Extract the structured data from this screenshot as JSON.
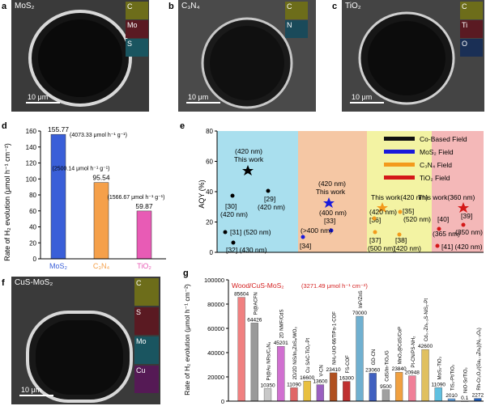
{
  "panels": {
    "a": {
      "letter": "a",
      "label": "MoS₂",
      "scale": "10 μm",
      "maps": [
        "C",
        "Mo",
        "S"
      ],
      "colors": [
        "#d8e03a",
        "#c0394a",
        "#3bb6c4"
      ]
    },
    "b": {
      "letter": "b",
      "label": "C₃N₄",
      "scale": "10 μm",
      "maps": [
        "C",
        "N"
      ],
      "colors": [
        "#d8e03a",
        "#3aa9c5"
      ]
    },
    "c": {
      "letter": "c",
      "label": "TiO₂",
      "scale": "10 μm",
      "maps": [
        "C",
        "Ti",
        "O"
      ],
      "colors": [
        "#d8e03a",
        "#c0394a",
        "#3e6fb0"
      ]
    },
    "f": {
      "letter": "f",
      "label": "CuS-MoS₂",
      "scale": "10 μm",
      "maps": [
        "C",
        "S",
        "Mo",
        "Cu"
      ],
      "colors": [
        "#d8e03a",
        "#c0394a",
        "#3bb6c4",
        "#b43bb6"
      ]
    }
  },
  "chart_d": {
    "letter": "d",
    "ylabel": "Rate of H₂ evolution (μmol h⁻¹ cm⁻²)",
    "ylim": [
      0,
      160
    ],
    "yticks": [
      0,
      20,
      40,
      60,
      80,
      100,
      120,
      140,
      160
    ],
    "bars": [
      {
        "name": "MoS₂",
        "value": 155.77,
        "value_label": "155.77",
        "note": "(4073.33 μmol h⁻¹ g⁻¹)",
        "color": "#3a5fd8"
      },
      {
        "name": "C₃N₄",
        "value": 95.54,
        "value_label": "95.54",
        "note": "(2500.14 μmol h⁻¹ g⁻¹)",
        "color": "#f5a04a"
      },
      {
        "name": "TiO₂",
        "value": 59.87,
        "value_label": "59.87",
        "note": "(1566.67 μmol h⁻¹ g⁻¹)",
        "color": "#e85bb5"
      }
    ]
  },
  "chart_e": {
    "letter": "e",
    "ylabel": "AQY (%)",
    "ylim": [
      0,
      80
    ],
    "yticks": [
      0,
      20,
      40,
      60,
      80
    ],
    "legend": [
      {
        "label": "Co-Based Field",
        "color": "#111111"
      },
      {
        "label": "MoS₂ Field",
        "color": "#1a1adb"
      },
      {
        "label": "C₃N₄ Field",
        "color": "#f39a1c"
      },
      {
        "label": "TiO₂ Field",
        "color": "#d41818"
      }
    ],
    "texts": [
      "(420 nm)",
      "This work",
      "[29]",
      "(420 nm)",
      "[30]",
      "(420 nm)",
      "[31] (520 nm)",
      "[32] (430 nm)",
      "(420 nm)",
      "This work",
      "(400 nm)",
      "[33]",
      "(>400 nm)",
      "[34]",
      "This work(420 nm)",
      "(420 nm)",
      "[36]",
      "[35]",
      "(520 nm)",
      "[37]",
      "(500 nm)",
      "[38]",
      "(420 nm)",
      "This work(360 nm)",
      "[40]",
      "[39]",
      "(365 nm)",
      "(350 nm)",
      "[41] (420 nm)"
    ]
  },
  "chart_g": {
    "letter": "g",
    "ylabel": "Rate of H₂ evolution (μmol h⁻¹ cm⁻²)",
    "ylim": [
      0,
      100000
    ],
    "yticks": [
      "0",
      "20000",
      "40000",
      "60000",
      "80000",
      "100000"
    ],
    "title": "Wood/CuS-MoS₂",
    "title_note": "(3271.49 μmol h⁻¹ cm⁻²)",
    "bars": [
      {
        "name": "",
        "value": 85604,
        "label": "85604",
        "color": "#f08080"
      },
      {
        "name": "Pt@ACFN",
        "value": 64426,
        "label": "64426",
        "color": "#9a9a9a"
      },
      {
        "name": "Pt@Au NRs/C₃N₄",
        "value": 10350,
        "label": "10350",
        "color": "#c8c8c8"
      },
      {
        "name": "2D NMF/CdS",
        "value": 45201,
        "label": "45201",
        "color": "#d070d0"
      },
      {
        "name": "2D/2D NiS/In₂ZnS₄/WO₃",
        "value": 11090,
        "label": "11090",
        "color": "#e06666"
      },
      {
        "name": "Cu SAC-TiO₂-Pt",
        "value": 16600,
        "label": "16600",
        "color": "#e8c040"
      },
      {
        "name": "V-CN",
        "value": 13600,
        "label": "13600",
        "color": "#9a5fc0"
      },
      {
        "name": "NH₂-UiO-66/TiPa-1-COF",
        "value": 23410,
        "label": "23410",
        "color": "#b05020"
      },
      {
        "name": "FS-COF",
        "value": 16300,
        "label": "16300",
        "color": "#c03030"
      },
      {
        "name": "InP/ZnS",
        "value": 70000,
        "label": "70000",
        "color": "#70b0d0"
      },
      {
        "name": "GD-CN",
        "value": 23060,
        "label": "23060",
        "color": "#4060c0"
      },
      {
        "name": "CdS/In-TiO₂/G",
        "value": 9500,
        "label": "9500",
        "color": "#a0a0a0"
      },
      {
        "name": "MnO₂@CdS/CoP",
        "value": 23840,
        "label": "23840",
        "color": "#f0a040"
      },
      {
        "name": "Pt-CN/PS-NH₂",
        "value": 20948,
        "label": "20948",
        "color": "#f08098"
      },
      {
        "name": "Cd₀.₇Zn₀.₃S-NiS₂-Pt",
        "value": 42600,
        "label": "42600",
        "color": "#e0c060"
      },
      {
        "name": "MoS₂-TiO₂",
        "value": 11090,
        "label": "11090",
        "color": "#60c0e0"
      },
      {
        "name": "TiS₂-Pt/TiO₂",
        "value": 2010,
        "label": "2010",
        "color": "#60a0e0"
      },
      {
        "name": "NiO-Sr/TiO₂",
        "value": 0.1,
        "label": "0.1",
        "color": "#4080d0"
      },
      {
        "name": "Rh-Cr₂O₃/(Ga₁₋ₓZnₓ)(N₁₋ₓOₓ)",
        "value": 2272,
        "label": "2272",
        "color": "#2060c0"
      }
    ]
  }
}
